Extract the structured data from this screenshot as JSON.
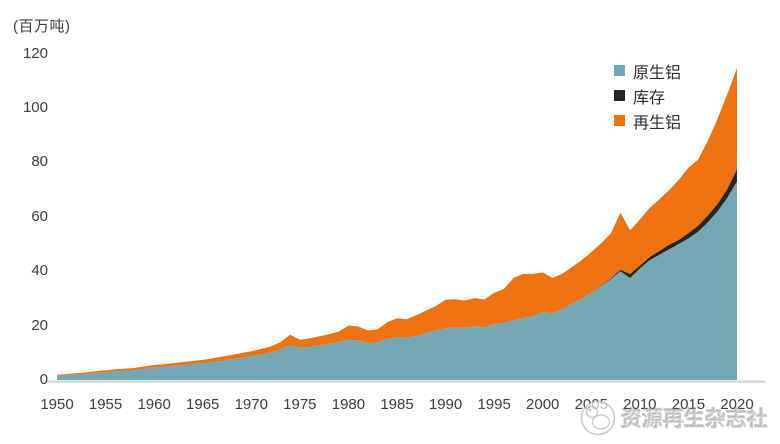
{
  "title": "(百万吨)",
  "watermark": {
    "text": "资源再生杂志社"
  },
  "colors": {
    "background": "#ffffff",
    "axis_text": "#3d3d3d",
    "axis_line": "#c9d6da"
  },
  "chart_data": {
    "type": "area",
    "stacked": true,
    "unit_label": "(百万吨)",
    "ylabel": "百万吨",
    "grid": false,
    "legend_position": "top-right",
    "xlim": [
      1950,
      2020
    ],
    "ylim": [
      0,
      120
    ],
    "x_ticks": [
      1950,
      1955,
      1960,
      1965,
      1970,
      1975,
      1980,
      1985,
      1990,
      1995,
      2000,
      2005,
      2010,
      2015,
      2020
    ],
    "y_ticks": [
      0,
      20,
      40,
      60,
      80,
      100,
      120
    ],
    "x": [
      1950,
      1951,
      1952,
      1953,
      1954,
      1955,
      1956,
      1957,
      1958,
      1959,
      1960,
      1961,
      1962,
      1963,
      1964,
      1965,
      1966,
      1967,
      1968,
      1969,
      1970,
      1971,
      1972,
      1973,
      1974,
      1975,
      1976,
      1977,
      1978,
      1979,
      1980,
      1981,
      1982,
      1983,
      1984,
      1985,
      1986,
      1987,
      1988,
      1989,
      1990,
      1991,
      1992,
      1993,
      1994,
      1995,
      1996,
      1997,
      1998,
      1999,
      2000,
      2001,
      2002,
      2003,
      2004,
      2005,
      2006,
      2007,
      2008,
      2009,
      2010,
      2011,
      2012,
      2013,
      2014,
      2015,
      2016,
      2017,
      2018,
      2019,
      2020
    ],
    "series": [
      {
        "key": "primary-aluminum",
        "name": "原生铝",
        "color": "#75a8b5",
        "values": [
          1.5,
          1.8,
          2.0,
          2.3,
          2.6,
          2.9,
          3.2,
          3.4,
          3.6,
          4.1,
          4.7,
          4.9,
          5.2,
          5.5,
          5.9,
          6.2,
          6.7,
          7.1,
          7.6,
          8.2,
          8.8,
          9.4,
          10.1,
          11.2,
          12.8,
          11.8,
          12.2,
          12.8,
          13.3,
          14.0,
          14.8,
          14.5,
          13.6,
          13.9,
          15.2,
          15.7,
          15.5,
          16.3,
          17.3,
          18.2,
          19.0,
          19.4,
          19.2,
          19.7,
          19.4,
          20.5,
          21.0,
          22.0,
          22.8,
          23.5,
          25.0,
          24.5,
          26.0,
          28.0,
          30.0,
          32.0,
          34.5,
          37.0,
          40.0,
          37.5,
          41.0,
          44.0,
          46.0,
          48.0,
          50.0,
          52.0,
          54.5,
          58.0,
          62.0,
          67.0,
          73.0
        ]
      },
      {
        "key": "inventory",
        "name": "库存",
        "color": "#262626",
        "values": [
          0,
          0,
          0,
          0,
          0,
          0,
          0,
          0,
          0,
          0,
          0,
          0,
          0,
          0,
          0,
          0,
          0,
          0,
          0,
          0,
          0,
          0,
          0,
          0,
          0,
          0,
          0,
          0,
          0,
          0,
          0,
          0,
          0,
          0,
          0,
          0,
          0,
          0,
          0,
          0,
          0,
          0,
          0,
          0,
          0,
          0,
          0,
          0,
          0,
          0,
          0,
          0,
          0,
          0,
          0,
          0,
          0.2,
          0.3,
          0.5,
          1.5,
          1.0,
          1.2,
          1.4,
          1.7,
          1.5,
          2.0,
          2.2,
          2.5,
          2.8,
          3.2,
          4.5
        ]
      },
      {
        "key": "recycled-aluminum",
        "name": "再生铝",
        "color": "#f0710f",
        "values": [
          0.4,
          0.4,
          0.5,
          0.5,
          0.6,
          0.7,
          0.7,
          0.8,
          0.8,
          0.9,
          0.8,
          0.9,
          1.0,
          1.1,
          1.1,
          1.2,
          1.3,
          1.5,
          1.6,
          1.7,
          1.8,
          2.0,
          2.2,
          2.7,
          3.8,
          3.0,
          3.1,
          3.3,
          3.5,
          3.8,
          5.2,
          5.2,
          4.6,
          4.7,
          6.0,
          7.0,
          6.8,
          7.5,
          8.2,
          9.0,
          10.5,
          10.3,
          10.0,
          10.4,
          10.2,
          11.5,
          12.5,
          15.5,
          16.2,
          15.5,
          14.5,
          13.0,
          13.0,
          13.5,
          14.0,
          15.0,
          15.5,
          16.5,
          21.0,
          16.0,
          17.0,
          18.0,
          19.0,
          20.0,
          22.0,
          24.0,
          24.3,
          27.5,
          31.2,
          34.8,
          37.2
        ]
      }
    ]
  }
}
